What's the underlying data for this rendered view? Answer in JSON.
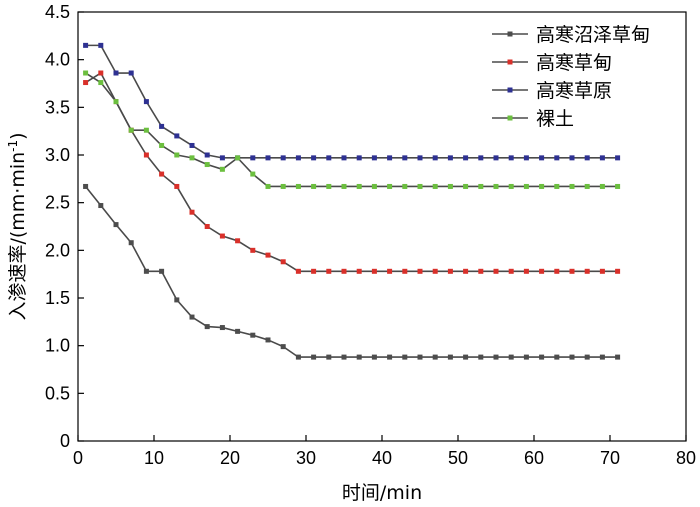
{
  "chart_data": {
    "type": "line",
    "title": "",
    "xlabel": "时间/min",
    "ylabel_main": "入渗速率/(mm·min",
    "ylabel_sup": "-1",
    "ylabel_end": ")",
    "xlim": [
      0,
      80
    ],
    "ylim": [
      0,
      4.5
    ],
    "xticks": [
      0,
      10,
      20,
      30,
      40,
      50,
      60,
      70,
      80
    ],
    "yticks": [
      0.0,
      0.5,
      1.0,
      1.5,
      2.0,
      2.5,
      3.0,
      3.5,
      4.0,
      4.5
    ],
    "xtick_labels": [
      "0",
      "10",
      "20",
      "30",
      "40",
      "50",
      "60",
      "70",
      "80"
    ],
    "ytick_labels": [
      "0",
      "0.5",
      "1.0",
      "1.5",
      "2.0",
      "2.5",
      "3.0",
      "3.5",
      "4.0",
      "4.5"
    ],
    "grid": false,
    "legend_position": "top-right",
    "x": [
      1,
      3,
      5,
      7,
      9,
      11,
      13,
      15,
      17,
      19,
      21,
      23,
      25,
      27,
      29,
      31,
      33,
      35,
      37,
      39,
      41,
      43,
      45,
      47,
      49,
      51,
      53,
      55,
      57,
      59,
      61,
      63,
      65,
      67,
      69,
      71
    ],
    "series": [
      {
        "name": "高寒沼泽草甸",
        "color": "#4d4d4d",
        "values": [
          2.67,
          2.47,
          2.27,
          2.08,
          1.78,
          1.78,
          1.48,
          1.3,
          1.2,
          1.19,
          1.15,
          1.11,
          1.06,
          0.99,
          0.88,
          0.88,
          0.88,
          0.88,
          0.88,
          0.88,
          0.88,
          0.88,
          0.88,
          0.88,
          0.88,
          0.88,
          0.88,
          0.88,
          0.88,
          0.88,
          0.88,
          0.88,
          0.88,
          0.88,
          0.88,
          0.88
        ]
      },
      {
        "name": "高寒草甸",
        "color": "#d9302a",
        "values": [
          3.76,
          3.86,
          3.56,
          3.26,
          3.0,
          2.8,
          2.67,
          2.4,
          2.25,
          2.15,
          2.1,
          2.0,
          1.95,
          1.88,
          1.78,
          1.78,
          1.78,
          1.78,
          1.78,
          1.78,
          1.78,
          1.78,
          1.78,
          1.78,
          1.78,
          1.78,
          1.78,
          1.78,
          1.78,
          1.78,
          1.78,
          1.78,
          1.78,
          1.78,
          1.78,
          1.78
        ]
      },
      {
        "name": "高寒草原",
        "color": "#2e3192",
        "values": [
          4.15,
          4.15,
          3.86,
          3.86,
          3.56,
          3.3,
          3.2,
          3.1,
          3.0,
          2.97,
          2.97,
          2.97,
          2.97,
          2.97,
          2.97,
          2.97,
          2.97,
          2.97,
          2.97,
          2.97,
          2.97,
          2.97,
          2.97,
          2.97,
          2.97,
          2.97,
          2.97,
          2.97,
          2.97,
          2.97,
          2.97,
          2.97,
          2.97,
          2.97,
          2.97,
          2.97
        ]
      },
      {
        "name": "裸土",
        "color": "#6cbf3f",
        "values": [
          3.86,
          3.76,
          3.56,
          3.26,
          3.26,
          3.1,
          3.0,
          2.97,
          2.9,
          2.85,
          2.97,
          2.8,
          2.67,
          2.67,
          2.67,
          2.67,
          2.67,
          2.67,
          2.67,
          2.67,
          2.67,
          2.67,
          2.67,
          2.67,
          2.67,
          2.67,
          2.67,
          2.67,
          2.67,
          2.67,
          2.67,
          2.67,
          2.67,
          2.67,
          2.67,
          2.67
        ]
      }
    ]
  }
}
